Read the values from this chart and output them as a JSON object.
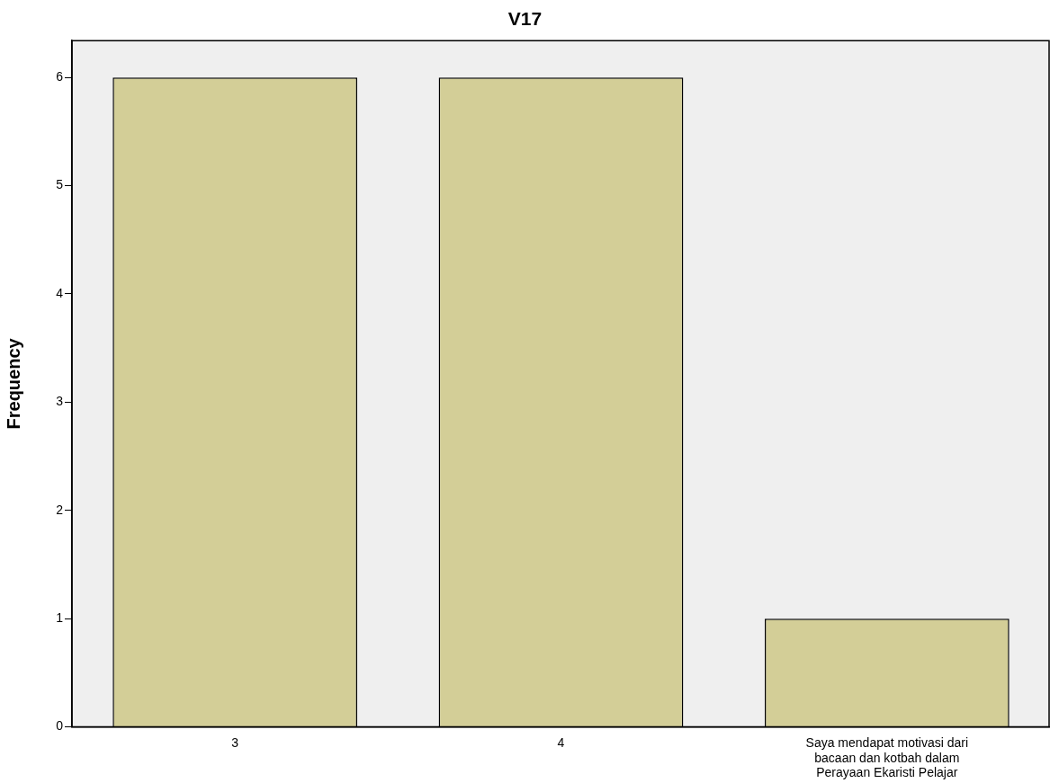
{
  "chart_data": {
    "type": "bar",
    "title": "V17",
    "ylabel": "Frequency",
    "categories": [
      "3",
      "4",
      "Saya mendapat motivasi dari bacaan dan kotbah dalam Perayaan Ekaristi Pelajar"
    ],
    "values": [
      6,
      6,
      1
    ],
    "color": "#d3ce97",
    "ylim": [
      0,
      6.34
    ],
    "yticks": [
      0,
      1,
      2,
      3,
      4,
      5,
      6
    ],
    "grid": false,
    "legend": false
  }
}
